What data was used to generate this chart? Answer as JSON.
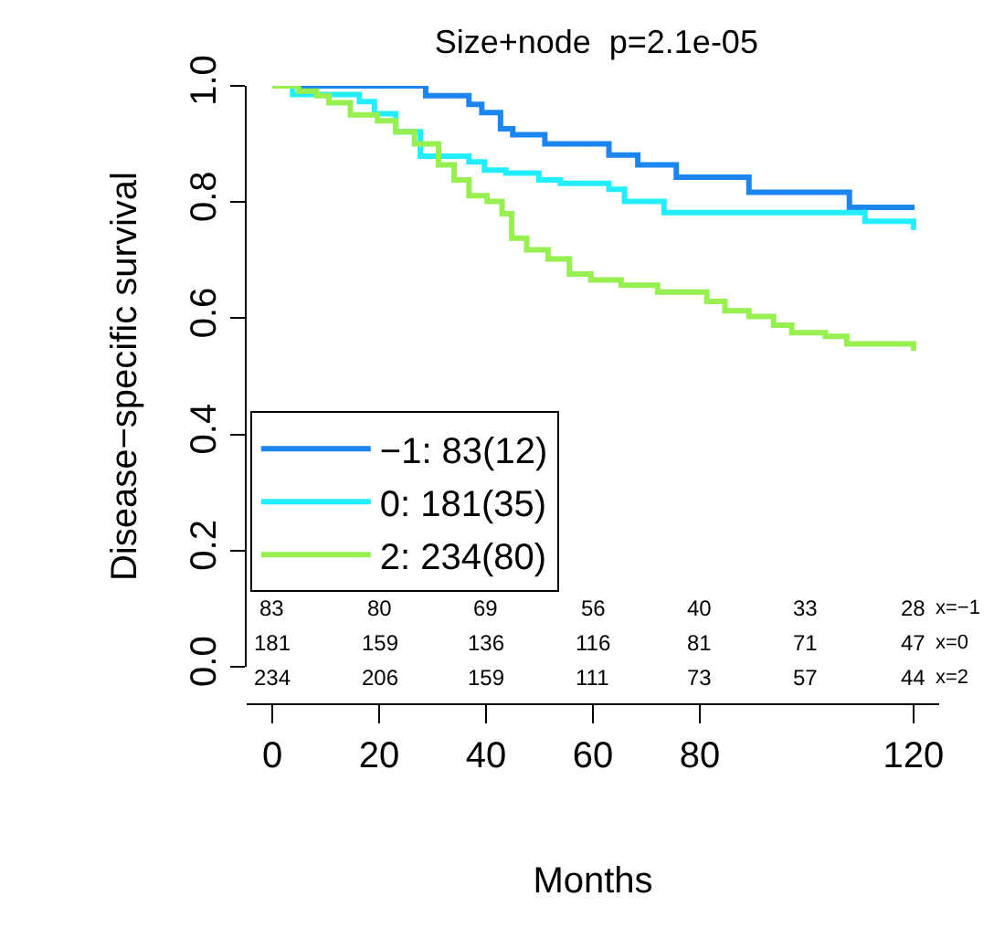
{
  "chart_data": {
    "type": "step",
    "title": "Size+node  p=2.1e-05",
    "xlabel": "Months",
    "ylabel": "Disease−specific survival",
    "xlim": [
      -4.8,
      124.8
    ],
    "ylim": [
      0,
      1
    ],
    "xticks": [
      0,
      20,
      40,
      60,
      80,
      120
    ],
    "yticks": [
      {
        "value": 0,
        "label": "0.0"
      },
      {
        "value": 0.2,
        "label": "0.2"
      },
      {
        "value": 0.4,
        "label": "0.4"
      },
      {
        "value": 0.6,
        "label": "0.6"
      },
      {
        "value": 0.8,
        "label": "0.8"
      },
      {
        "value": 1,
        "label": "1.0"
      }
    ],
    "legend": "bottom left",
    "series": [
      {
        "name": "−1: 83(12)",
        "color": "#1c86ee",
        "x": [
          0,
          28.7,
          36.8,
          39.2,
          42.7,
          45,
          51,
          63,
          68.4,
          75.6,
          89.2,
          108,
          120.2
        ],
        "values": [
          1,
          0.983,
          0.968,
          0.954,
          0.926,
          0.916,
          0.9,
          0.881,
          0.864,
          0.843,
          0.817,
          0.791,
          0.791
        ]
      },
      {
        "name": "0: 181(35)",
        "color": "#22eeff",
        "x": [
          0,
          3.8,
          16.3,
          19.1,
          23.1,
          27.7,
          36.8,
          39.7,
          43.7,
          49.9,
          53.9,
          63,
          65.9,
          73.3,
          110.9,
          120
        ],
        "values": [
          1,
          0.985,
          0.973,
          0.952,
          0.921,
          0.879,
          0.869,
          0.855,
          0.85,
          0.838,
          0.832,
          0.822,
          0.801,
          0.782,
          0.767,
          0.752
        ]
      },
      {
        "name": "2: 234(80)",
        "color": "#96f050",
        "x": [
          0,
          4.9,
          8.3,
          10.6,
          14.6,
          19.7,
          23.1,
          26.6,
          31.1,
          34,
          36.8,
          40.2,
          43,
          44.8,
          47.6,
          51.6,
          55.6,
          59.6,
          65.3,
          72.1,
          81.3,
          84.7,
          89.2,
          93.8,
          97.2,
          103.5,
          107.5,
          120
        ],
        "values": [
          1,
          0.991,
          0.983,
          0.971,
          0.95,
          0.94,
          0.921,
          0.9,
          0.864,
          0.838,
          0.811,
          0.801,
          0.78,
          0.738,
          0.718,
          0.702,
          0.676,
          0.666,
          0.657,
          0.645,
          0.629,
          0.613,
          0.603,
          0.588,
          0.575,
          0.569,
          0.556,
          0.544
        ]
      }
    ],
    "annotations": [
      "83",
      "80",
      "69",
      "56",
      "40",
      "33",
      "28",
      "x=−1",
      "181",
      "159",
      "136",
      "116",
      "81",
      "71",
      "47",
      "x=0",
      "234",
      "206",
      "159",
      "111",
      "73",
      "57",
      "44",
      "x=2"
    ]
  }
}
